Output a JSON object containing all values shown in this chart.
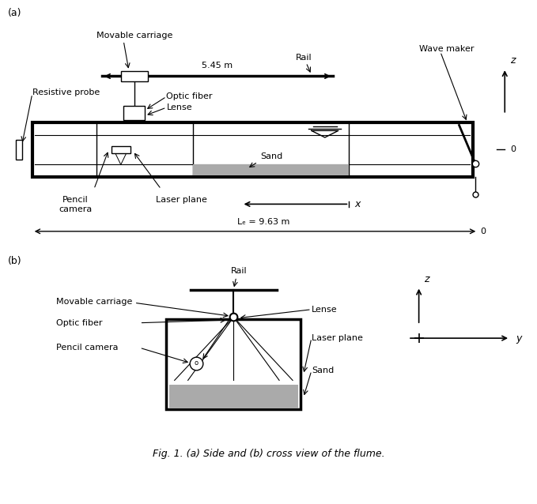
{
  "fig_caption": "Fig. 1. (a) Side and (b) cross view of the flume.",
  "background_color": "#ffffff",
  "line_color": "#000000",
  "part_a_label": "(a)",
  "part_b_label": "(b)",
  "side_view": {
    "carriage_label": "Movable carriage",
    "rail_label": "Rail",
    "wavemaker_label": "Wave maker",
    "resistive_probe_label": "Resistive probe",
    "optic_fiber_label": "Optic fiber",
    "lense_label": "Lense",
    "pencil_camera_label": "Pencil\ncamera",
    "laser_plane_label": "Laser plane",
    "sand_label": "Sand",
    "dimension_545": "5.45 m",
    "dimension_963": "Lₑ = 9.63 m",
    "x_label": "x",
    "z_label": "z",
    "zero_label": "0"
  },
  "cross_view": {
    "rail_label": "Rail",
    "movable_carriage_label": "Movable carriage",
    "lense_label": "Lense",
    "optic_fiber_label": "Optic fiber",
    "pencil_camera_label": "Pencil camera",
    "laser_plane_label": "Laser plane",
    "sand_label": "Sand",
    "z_label": "z",
    "y_label": "y"
  }
}
